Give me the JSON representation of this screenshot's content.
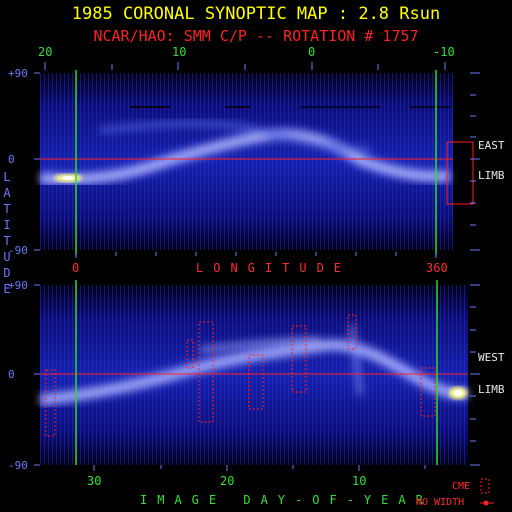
{
  "title": "1985 CORONAL SYNOPTIC MAP : 2.8 Rsun",
  "subtitle": "NCAR/HAO: SMM C/P -- ROTATION # 1757",
  "top_panel": {
    "top_axis_ticks": [
      "20",
      "10",
      "0",
      "-10"
    ],
    "lat_ticks": [
      "+90",
      "0",
      "-90"
    ],
    "bottom_axis_ticks": [
      "0",
      "360"
    ],
    "side_label_1": "EAST",
    "side_label_2": "LIMB"
  },
  "longitude_label": "LONGITUDE",
  "latitude_label": [
    "L",
    "A",
    "T",
    "I",
    "T",
    "U",
    "D",
    "E"
  ],
  "bottom_panel": {
    "lat_ticks": [
      "+90",
      "0",
      "-90"
    ],
    "day_ticks": [
      "30",
      "20",
      "10"
    ],
    "side_label_1": "WEST",
    "side_label_2": "LIMB"
  },
  "xlabel": "IMAGE DAY-OF-YEAR",
  "legend": {
    "cme_label": "CME",
    "no_width_label": "NO WIDTH"
  },
  "colors": {
    "title": "#ffff00",
    "subtitle": "#ff2020",
    "axis_green": "#32e032",
    "axis_blue": "#6a78ff",
    "marker_red": "#ff2a2a",
    "map_bg": "#0a0a80"
  }
}
